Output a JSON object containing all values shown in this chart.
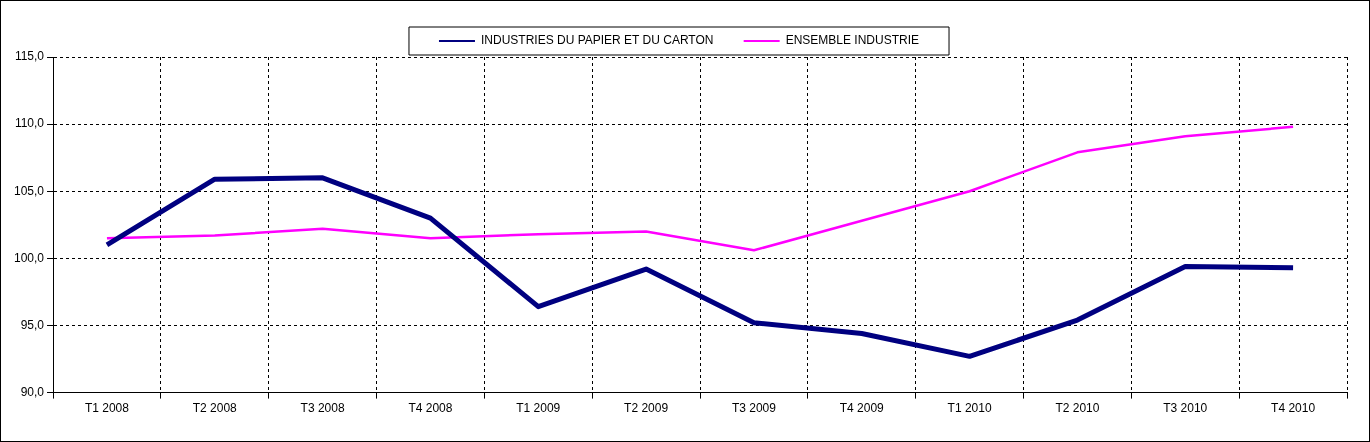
{
  "chart_data": {
    "type": "line",
    "categories": [
      "T1 2008",
      "T2 2008",
      "T3 2008",
      "T4 2008",
      "T1 2009",
      "T2 2009",
      "T3 2009",
      "T4 2009",
      "T1 2010",
      "T2 2010",
      "T3 2010",
      "T4 2010"
    ],
    "series": [
      {
        "name": "INDUSTRIES DU PAPIER ET DU CARTON",
        "color": "#000080",
        "values": [
          101.0,
          105.9,
          106.0,
          103.0,
          96.4,
          99.2,
          95.2,
          94.4,
          92.7,
          95.4,
          99.4,
          99.3
        ]
      },
      {
        "name": "ENSEMBLE INDUSTRIE",
        "color": "#ff00ff",
        "values": [
          101.5,
          101.7,
          102.2,
          101.5,
          101.8,
          102.0,
          100.6,
          102.8,
          105.0,
          107.9,
          109.1,
          109.8
        ]
      }
    ],
    "ylim": [
      90,
      115
    ],
    "yticks": [
      {
        "value": 90,
        "label": "90,0"
      },
      {
        "value": 95,
        "label": "95,0"
      },
      {
        "value": 100,
        "label": "100,0"
      },
      {
        "value": 105,
        "label": "105,0"
      },
      {
        "value": 110,
        "label": "110,0"
      },
      {
        "value": 115,
        "label": "115,0"
      }
    ],
    "grid": true,
    "legend": "top",
    "marker": "none",
    "line_style": "solid"
  }
}
